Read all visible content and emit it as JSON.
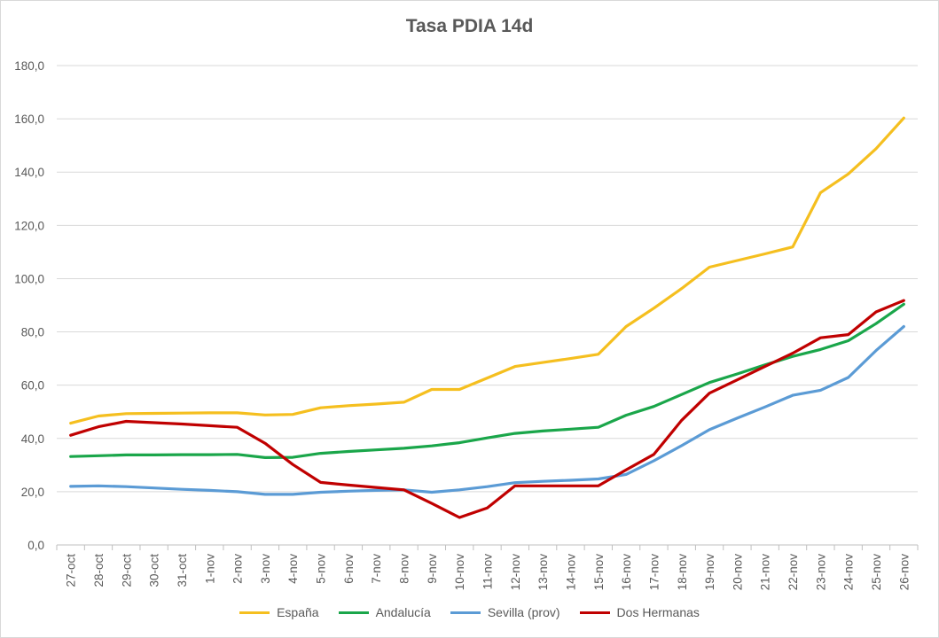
{
  "chart_data": {
    "type": "line",
    "title": "Tasa PDIA 14d",
    "xlabel": "",
    "ylabel": "",
    "ylim": [
      0,
      180
    ],
    "yticks": [
      "0,0",
      "20,0",
      "40,0",
      "60,0",
      "80,0",
      "100,0",
      "120,0",
      "140,0",
      "160,0",
      "180,0"
    ],
    "grid": true,
    "legend_position": "bottom",
    "categories": [
      "27-oct",
      "28-oct",
      "29-oct",
      "30-oct",
      "31-oct",
      "1-nov",
      "2-nov",
      "3-nov",
      "4-nov",
      "5-nov",
      "6-nov",
      "7-nov",
      "8-nov",
      "9-nov",
      "10-nov",
      "11-nov",
      "12-nov",
      "13-nov",
      "14-nov",
      "15-nov",
      "16-nov",
      "17-nov",
      "18-nov",
      "19-nov",
      "20-nov",
      "21-nov",
      "22-nov",
      "23-nov",
      "24-nov",
      "25-nov",
      "26-nov"
    ],
    "series": [
      {
        "name": "España",
        "color": "#f5bf1f",
        "values": [
          45.7,
          48.4,
          49.3,
          49.4,
          49.5,
          49.6,
          49.6,
          48.8,
          49.0,
          51.5,
          52.3,
          52.9,
          53.6,
          58.4,
          58.4,
          62.7,
          67.0,
          68.5,
          70.0,
          71.6,
          82.0,
          88.9,
          96.3,
          104.3,
          106.8,
          109.3,
          111.9,
          132.3,
          139.3,
          148.8,
          160.3
        ]
      },
      {
        "name": "Andalucía",
        "color": "#1aa64a",
        "values": [
          33.2,
          33.5,
          33.8,
          33.8,
          33.9,
          33.9,
          34.0,
          32.8,
          32.9,
          34.4,
          35.1,
          35.7,
          36.3,
          37.2,
          38.4,
          40.2,
          41.9,
          42.8,
          43.5,
          44.2,
          48.7,
          52.0,
          56.5,
          61.0,
          64.2,
          67.6,
          70.8,
          73.4,
          76.7,
          83.1,
          90.4
        ]
      },
      {
        "name": "Sevilla (prov)",
        "color": "#5b9bd5",
        "values": [
          22.0,
          22.2,
          21.9,
          21.4,
          20.9,
          20.5,
          20.0,
          19.0,
          19.0,
          19.8,
          20.2,
          20.5,
          20.7,
          19.8,
          20.7,
          21.9,
          23.4,
          23.9,
          24.3,
          24.8,
          26.5,
          31.6,
          37.3,
          43.3,
          47.6,
          51.8,
          56.2,
          58.1,
          62.9,
          73.0,
          82.0
        ]
      },
      {
        "name": "Dos Hermanas",
        "color": "#c00000",
        "values": [
          41.2,
          44.4,
          46.4,
          45.9,
          45.4,
          44.8,
          44.2,
          38.2,
          30.2,
          23.5,
          22.5,
          21.6,
          20.7,
          15.6,
          10.3,
          13.9,
          22.2,
          22.2,
          22.2,
          22.2,
          28.2,
          34.0,
          46.8,
          57.0,
          62.0,
          67.0,
          72.0,
          77.8,
          79.0,
          87.5,
          91.8
        ]
      }
    ]
  }
}
